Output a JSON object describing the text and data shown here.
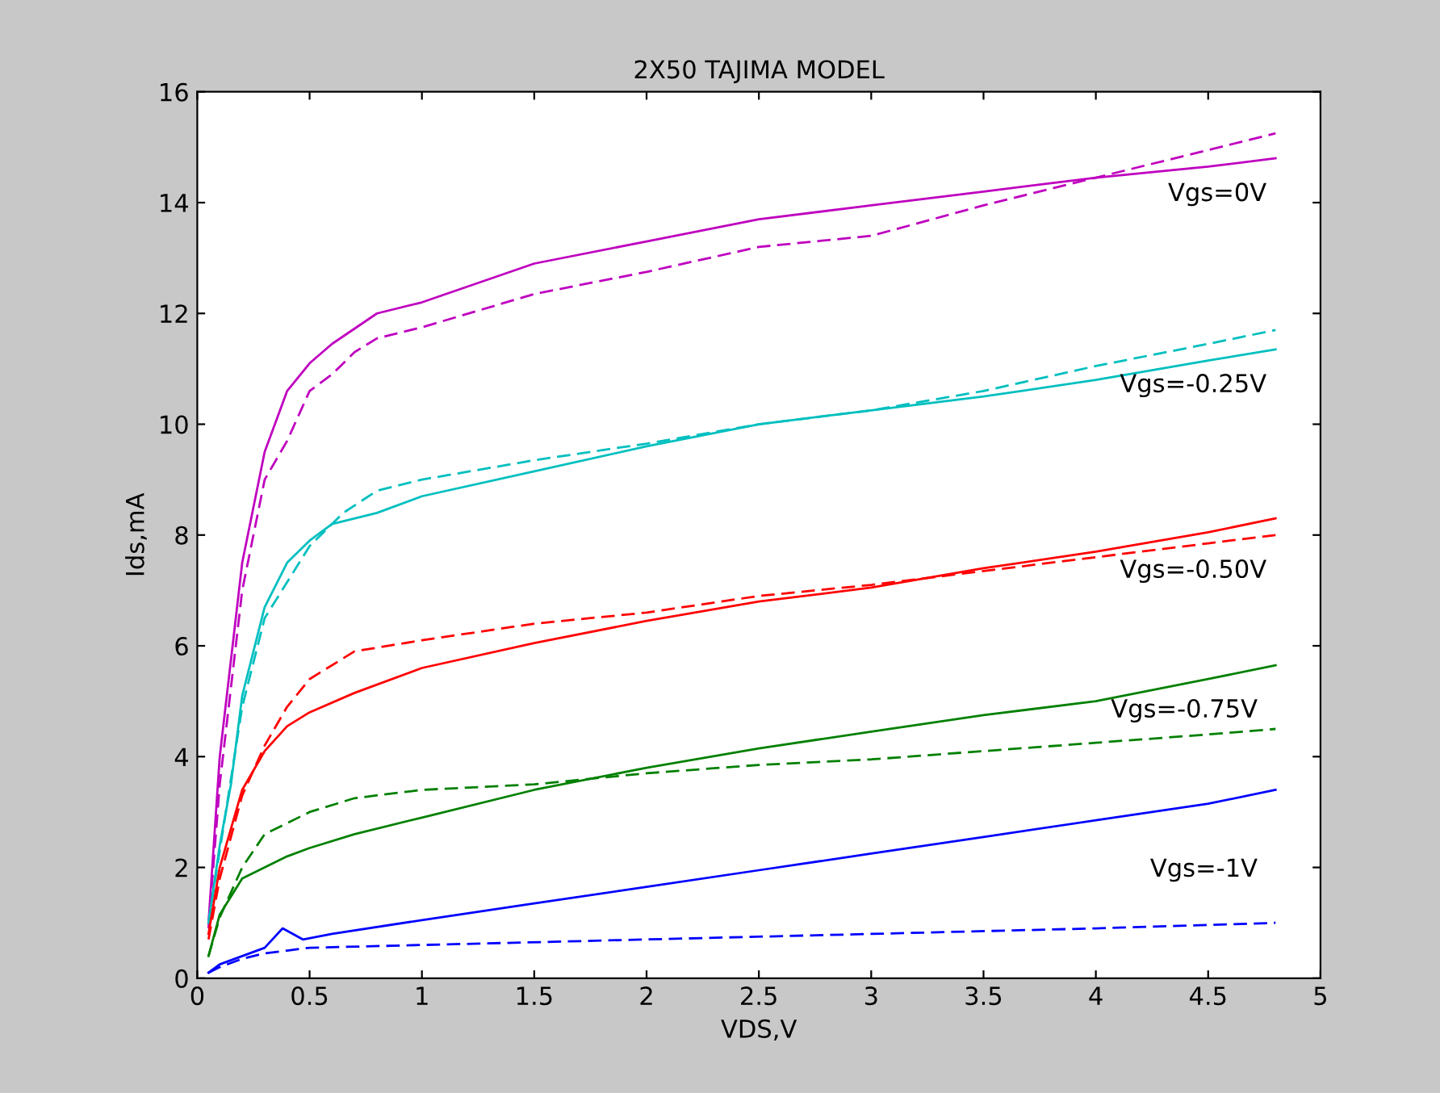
{
  "chart_data": {
    "type": "line",
    "title": "2X50 TAJIMA MODEL",
    "xlabel": "VDS,V",
    "ylabel": "Ids,mA",
    "xlim": [
      0,
      5
    ],
    "ylim": [
      0,
      16
    ],
    "xticks": [
      0,
      0.5,
      1,
      1.5,
      2,
      2.5,
      3,
      3.5,
      4,
      4.5,
      5
    ],
    "yticks": [
      0,
      2,
      4,
      6,
      8,
      10,
      12,
      14,
      16
    ],
    "grid": false,
    "legend": false,
    "series": [
      {
        "name": "Vgs=0V",
        "color": "#bf00bf",
        "line_style": "solid",
        "x": [
          0.05,
          0.1,
          0.2,
          0.3,
          0.4,
          0.5,
          0.6,
          0.8,
          1.0,
          1.5,
          2.0,
          2.5,
          3.0,
          3.5,
          4.0,
          4.5,
          4.8
        ],
        "values": [
          1.0,
          4.0,
          7.5,
          9.5,
          10.6,
          11.1,
          11.45,
          12.0,
          12.2,
          12.9,
          13.3,
          13.7,
          13.95,
          14.2,
          14.45,
          14.65,
          14.8
        ]
      },
      {
        "color": "#bf00bf",
        "line_style": "dashed",
        "x": [
          0.05,
          0.1,
          0.2,
          0.3,
          0.4,
          0.5,
          0.6,
          0.7,
          0.8,
          1.0,
          1.5,
          2.0,
          2.5,
          3.0,
          3.5,
          4.0,
          4.5,
          4.8
        ],
        "values": [
          0.9,
          3.5,
          7.0,
          9.0,
          9.7,
          10.6,
          10.9,
          11.3,
          11.55,
          11.75,
          12.35,
          12.75,
          13.2,
          13.4,
          13.95,
          14.45,
          14.95,
          15.25
        ]
      },
      {
        "name": "Vgs=-0.25V",
        "color": "#00bfbf",
        "line_style": "solid",
        "x": [
          0.05,
          0.1,
          0.15,
          0.2,
          0.3,
          0.4,
          0.5,
          0.6,
          0.8,
          1.0,
          1.5,
          2.0,
          2.5,
          3.0,
          3.5,
          4.0,
          4.5,
          4.8
        ],
        "values": [
          1.0,
          2.4,
          3.5,
          5.1,
          6.7,
          7.5,
          7.9,
          8.2,
          8.4,
          8.7,
          9.15,
          9.6,
          10.0,
          10.25,
          10.5,
          10.8,
          11.15,
          11.35
        ]
      },
      {
        "color": "#00bfbf",
        "line_style": "dashed",
        "x": [
          0.05,
          0.1,
          0.2,
          0.3,
          0.5,
          0.65,
          0.8,
          1.0,
          1.5,
          2.0,
          2.5,
          3.0,
          3.5,
          4.0,
          4.5,
          4.8
        ],
        "values": [
          1.0,
          2.3,
          4.9,
          6.5,
          7.8,
          8.4,
          8.8,
          9.0,
          9.35,
          9.65,
          10.0,
          10.25,
          10.6,
          11.05,
          11.45,
          11.7
        ]
      },
      {
        "name": "Vgs=-0.50V",
        "color": "#ff0000",
        "line_style": "solid",
        "x": [
          0.05,
          0.1,
          0.2,
          0.3,
          0.4,
          0.5,
          0.7,
          1.0,
          1.5,
          2.0,
          2.5,
          3.0,
          3.5,
          4.0,
          4.5,
          4.8
        ],
        "values": [
          0.8,
          2.0,
          3.4,
          4.1,
          4.55,
          4.8,
          5.15,
          5.6,
          6.05,
          6.45,
          6.8,
          7.05,
          7.4,
          7.7,
          8.05,
          8.3
        ]
      },
      {
        "color": "#ff0000",
        "line_style": "dashed",
        "x": [
          0.05,
          0.1,
          0.2,
          0.3,
          0.4,
          0.5,
          0.7,
          1.0,
          1.5,
          2.0,
          2.5,
          3.0,
          3.5,
          4.0,
          4.5,
          4.8
        ],
        "values": [
          0.7,
          1.8,
          3.3,
          4.2,
          4.9,
          5.4,
          5.9,
          6.1,
          6.4,
          6.6,
          6.9,
          7.1,
          7.35,
          7.6,
          7.85,
          8.0
        ]
      },
      {
        "name": "Vgs=-0.75V",
        "color": "#008000",
        "line_style": "solid",
        "x": [
          0.05,
          0.1,
          0.2,
          0.3,
          0.4,
          0.5,
          0.7,
          1.0,
          1.5,
          2.0,
          2.5,
          3.0,
          3.5,
          4.0,
          4.5,
          4.8
        ],
        "values": [
          0.4,
          1.15,
          1.8,
          2.0,
          2.2,
          2.35,
          2.6,
          2.9,
          3.4,
          3.8,
          4.15,
          4.45,
          4.75,
          5.0,
          5.4,
          5.65
        ]
      },
      {
        "color": "#008000",
        "line_style": "dashed",
        "x": [
          0.05,
          0.1,
          0.2,
          0.3,
          0.5,
          0.7,
          1.0,
          1.5,
          2.0,
          2.5,
          3.0,
          3.5,
          4.0,
          4.5,
          4.8
        ],
        "values": [
          0.4,
          1.1,
          2.0,
          2.6,
          3.0,
          3.25,
          3.4,
          3.5,
          3.7,
          3.85,
          3.95,
          4.1,
          4.25,
          4.4,
          4.5
        ]
      },
      {
        "name": "Vgs=-1V",
        "color": "#0000ff",
        "line_style": "solid",
        "x": [
          0.05,
          0.1,
          0.2,
          0.3,
          0.38,
          0.47,
          0.6,
          1.0,
          1.5,
          2.0,
          2.5,
          3.0,
          3.5,
          4.0,
          4.5,
          4.8
        ],
        "values": [
          0.1,
          0.25,
          0.4,
          0.55,
          0.9,
          0.7,
          0.8,
          1.05,
          1.35,
          1.65,
          1.95,
          2.25,
          2.55,
          2.85,
          3.15,
          3.4
        ]
      },
      {
        "color": "#0000ff",
        "line_style": "dashed",
        "x": [
          0.05,
          0.1,
          0.2,
          0.3,
          0.4,
          0.5,
          1.0,
          2.0,
          3.0,
          4.0,
          4.8
        ],
        "values": [
          0.1,
          0.2,
          0.35,
          0.45,
          0.5,
          0.55,
          0.6,
          0.7,
          0.8,
          0.9,
          1.0
        ]
      }
    ]
  }
}
